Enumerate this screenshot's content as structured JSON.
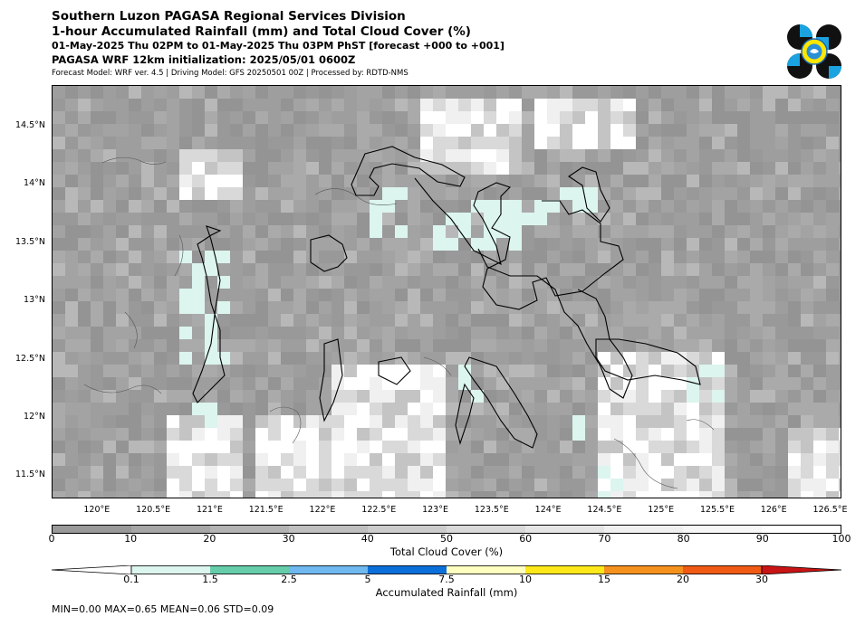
{
  "header": {
    "title": "Southern Luzon PAGASA Regional Services Division",
    "subtitle": "1-hour Accumulated Rainfall (mm) and Total Cloud Cover (%)",
    "period": "01-May-2025 Thu 02PM to 01-May-2025 Thu 03PM PhST [forecast +000 to +001]",
    "init": "PAGASA WRF 12km initialization: 2025/05/01 0600Z",
    "model": "Forecast Model: WRF ver. 4.5 | Driving Model: GFS 20250501 00Z | Processed by: RDTD-NMS"
  },
  "map": {
    "lon_range": [
      119.6,
      126.6
    ],
    "lat_range": [
      11.3,
      14.85
    ],
    "lat_labels": [
      "14.5°N",
      "14°N",
      "13.5°N",
      "13°N",
      "12.5°N",
      "12°N",
      "11.5°N"
    ],
    "lat_values": [
      14.5,
      14.0,
      13.5,
      13.0,
      12.5,
      12.0,
      11.5
    ],
    "lon_labels": [
      "120°E",
      "120.5°E",
      "121°E",
      "121.5°E",
      "122°E",
      "122.5°E",
      "123°E",
      "123.5°E",
      "124°E",
      "124.5°E",
      "125°E",
      "125.5°E",
      "126°E",
      "126.5°E"
    ],
    "lon_values": [
      120.0,
      120.5,
      121.0,
      121.5,
      122.0,
      122.5,
      123.0,
      123.5,
      124.0,
      124.5,
      125.0,
      125.5,
      126.0,
      126.5
    ],
    "colors": {
      "ocean_cloud": "#9a9a9a",
      "coast": "#000000",
      "province": "#555555",
      "light_rain": "#dcf5ee"
    }
  },
  "cloud_colorbar": {
    "title": "Total Cloud Cover (%)",
    "ticks": [
      "0",
      "10",
      "20",
      "30",
      "40",
      "50",
      "60",
      "70",
      "80",
      "90",
      "100"
    ],
    "colors": [
      "#999999",
      "#a6a6a6",
      "#b3b3b3",
      "#bfbfbf",
      "#cccccc",
      "#d9d9d9",
      "#e5e5e5",
      "#f0f0f0",
      "#f7f7f7",
      "#ffffff"
    ]
  },
  "rain_colorbar": {
    "title": "Accumulated Rainfall (mm)",
    "ticks": [
      "0.1",
      "1.5",
      "2.5",
      "5",
      "7.5",
      "10",
      "15",
      "20",
      "30"
    ],
    "colors": [
      "#ffffff",
      "#dcf5ee",
      "#66cdaa",
      "#6fb8f0",
      "#0b6fd9",
      "#ffffc0",
      "#ffe81a",
      "#f5921e",
      "#f05a14",
      "#c81414"
    ]
  },
  "stats": "MIN=0.00   MAX=0.65   MEAN=0.06   STD=0.09"
}
